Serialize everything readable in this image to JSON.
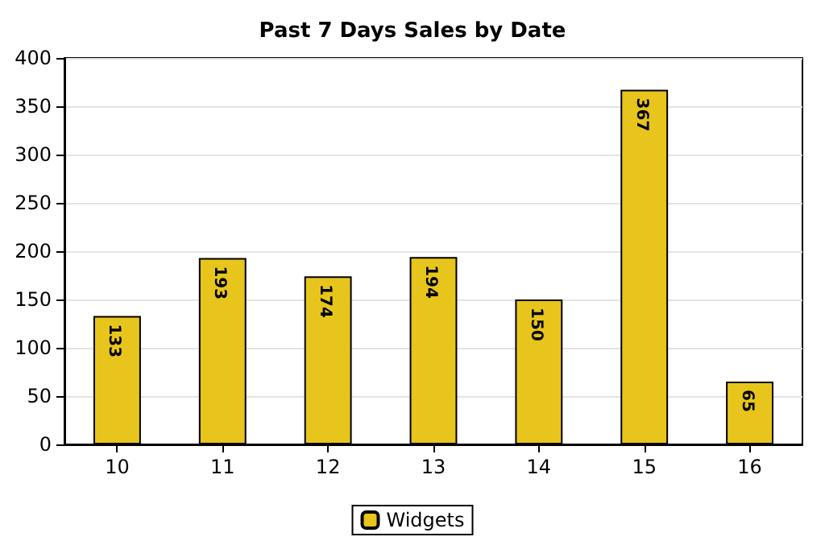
{
  "chart_data": {
    "type": "bar",
    "title": "Past 7 Days Sales by Date",
    "categories": [
      "10",
      "11",
      "12",
      "13",
      "14",
      "15",
      "16"
    ],
    "series": [
      {
        "name": "Widgets",
        "color": "#e8c51c",
        "values": [
          133,
          193,
          174,
          194,
          150,
          367,
          65
        ]
      }
    ],
    "ylim": [
      0,
      400
    ],
    "yticks": [
      0,
      50,
      100,
      150,
      200,
      250,
      300,
      350,
      400
    ],
    "grid": "y",
    "legend": "bottom",
    "data_labels": true
  }
}
